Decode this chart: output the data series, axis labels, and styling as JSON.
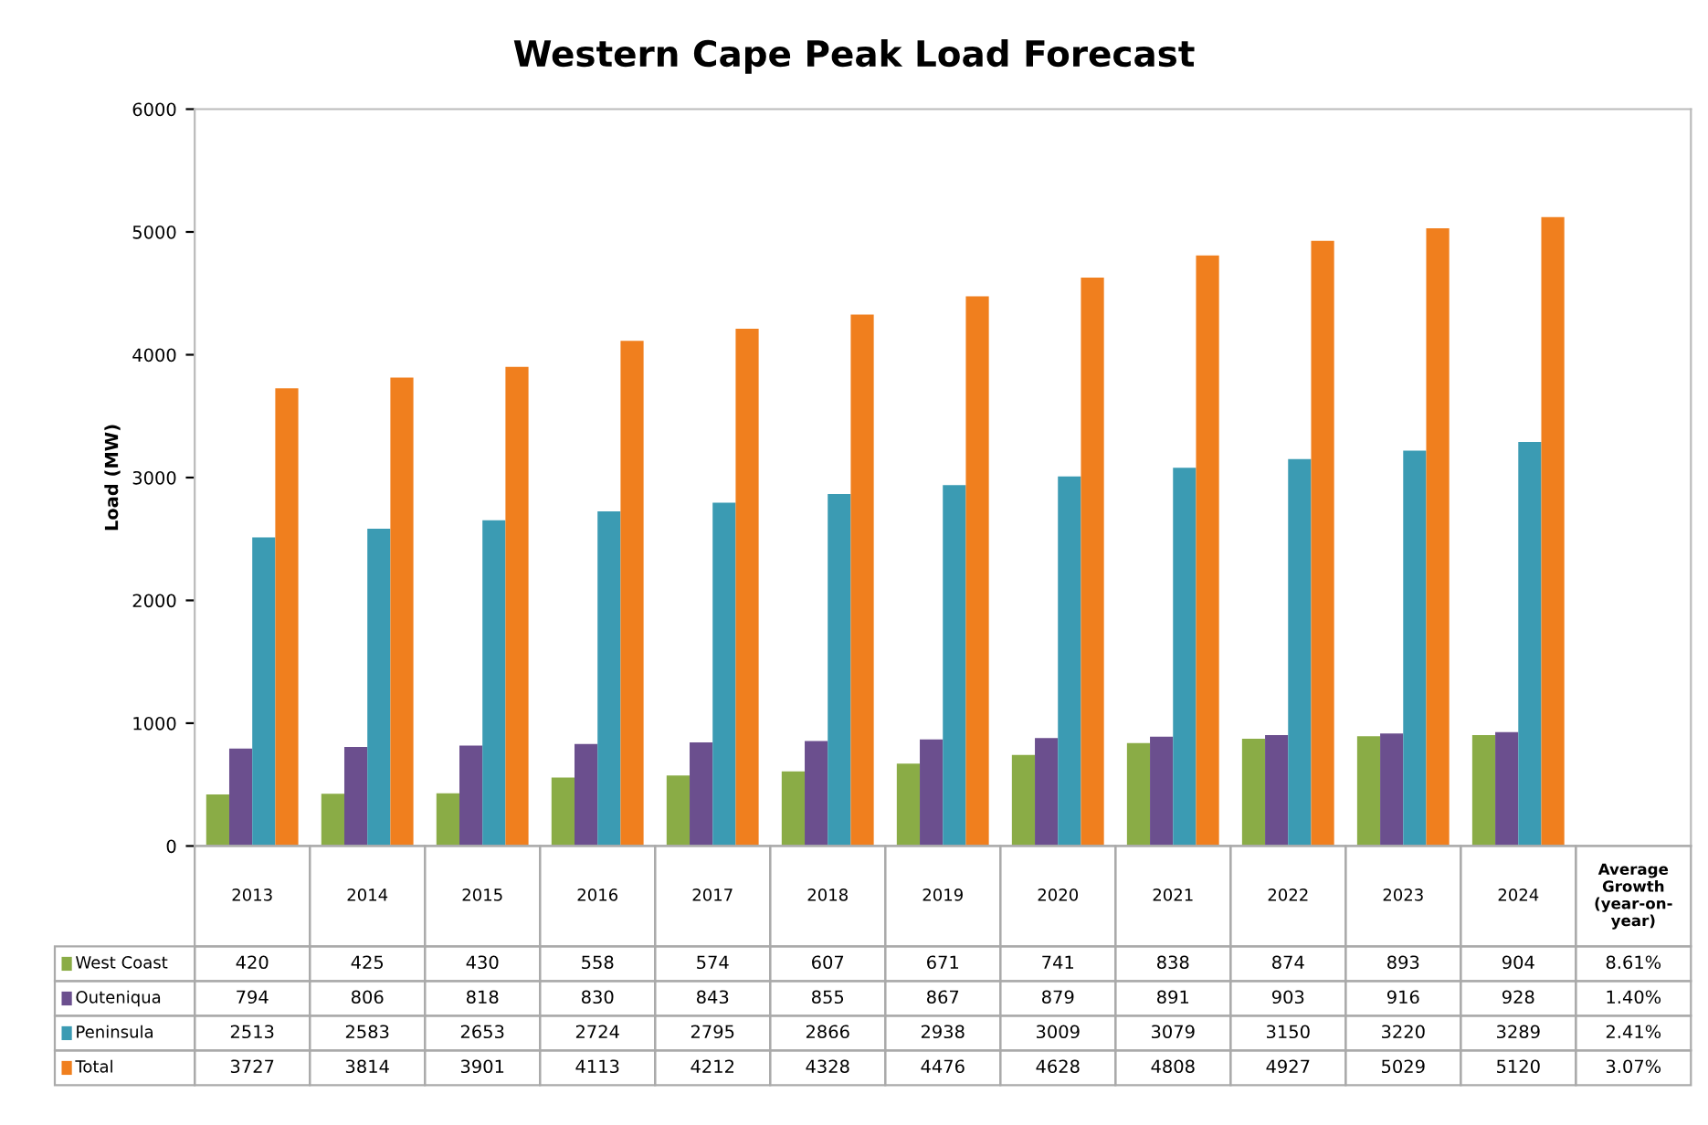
{
  "chart_data": {
    "type": "bar",
    "title": "Western Cape Peak Load Forecast",
    "ylabel": "Load (MW)",
    "categories": [
      "2013",
      "2014",
      "2015",
      "2016",
      "2017",
      "2018",
      "2019",
      "2020",
      "2021",
      "2022",
      "2023",
      "2024",
      "Average\nGrowth\n(year-on-\nyear)"
    ],
    "series": [
      {
        "name": "West Coast",
        "color": "#8aac46",
        "values": [
          420,
          425,
          430,
          558,
          574,
          607,
          671,
          741,
          838,
          874,
          893,
          904,
          null
        ],
        "value_labels": [
          "420",
          "425",
          "430",
          "558",
          "574",
          "607",
          "671",
          "741",
          "838",
          "874",
          "893",
          "904",
          "8.61%"
        ]
      },
      {
        "name": "Outeniqua",
        "color": "#6b4f8e",
        "values": [
          794,
          806,
          818,
          830,
          843,
          855,
          867,
          879,
          891,
          903,
          916,
          928,
          null
        ],
        "value_labels": [
          "794",
          "806",
          "818",
          "830",
          "843",
          "855",
          "867",
          "879",
          "891",
          "903",
          "916",
          "928",
          "1.40%"
        ]
      },
      {
        "name": "Peninsula",
        "color": "#3b9bb3",
        "values": [
          2513,
          2583,
          2653,
          2724,
          2795,
          2866,
          2938,
          3009,
          3079,
          3150,
          3220,
          3289,
          null
        ],
        "value_labels": [
          "2513",
          "2583",
          "2653",
          "2724",
          "2795",
          "2866",
          "2938",
          "3009",
          "3079",
          "3150",
          "3220",
          "3289",
          "2.41%"
        ]
      },
      {
        "name": "Total",
        "color": "#f07f1e",
        "values": [
          3727,
          3814,
          3901,
          4113,
          4212,
          4328,
          4476,
          4628,
          4808,
          4927,
          5029,
          5120,
          null
        ],
        "value_labels": [
          "3727",
          "3814",
          "3901",
          "4113",
          "4212",
          "4328",
          "4476",
          "4628",
          "4808",
          "4927",
          "5029",
          "5120",
          "3.07%"
        ]
      }
    ],
    "legend": "bottom left",
    "ylim": [
      0,
      6000
    ],
    "yticks": [
      0,
      1000,
      2000,
      3000,
      4000,
      5000,
      6000
    ]
  }
}
